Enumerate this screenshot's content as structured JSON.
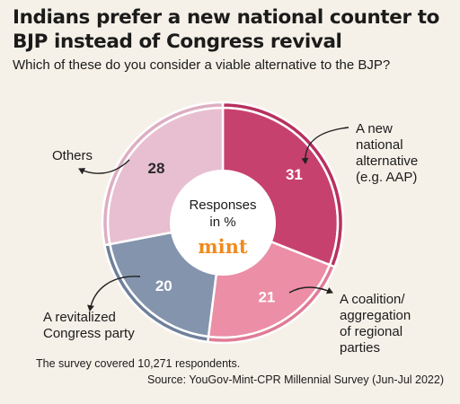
{
  "header": {
    "title": "Indians prefer a new national counter to BJP instead of Congress revival",
    "subtitle": "Which of these do you consider a viable alternative to the BJP?"
  },
  "chart_data": {
    "type": "pie",
    "center_label": "Responses in %",
    "brand": "mint",
    "slices": [
      {
        "label": "A new national alternative (e.g. AAP)",
        "value": 31,
        "color": "#c7416f",
        "ring_color": "#b8305e",
        "text_color": "#ffffff"
      },
      {
        "label": "A coalition/ aggregation of regional parties",
        "value": 21,
        "color": "#ec8ea6",
        "ring_color": "#e07b96",
        "text_color": "#ffffff"
      },
      {
        "label": "A revitalized Congress party",
        "value": 20,
        "color": "#8494ad",
        "ring_color": "#6f809b",
        "text_color": "#ffffff"
      },
      {
        "label": "Others",
        "value": 28,
        "color": "#e8bfd0",
        "ring_color": "#ddaec2",
        "text_color": "#2a2a2a"
      }
    ]
  },
  "footer": {
    "note": "The survey covered 10,271 respondents.",
    "source": "Source: YouGov-Mint-CPR Millennial Survey (Jun-Jul 2022)"
  },
  "colors": {
    "background": "#f6f1e8",
    "brand": "#f08a1d",
    "arrow": "#222222"
  }
}
